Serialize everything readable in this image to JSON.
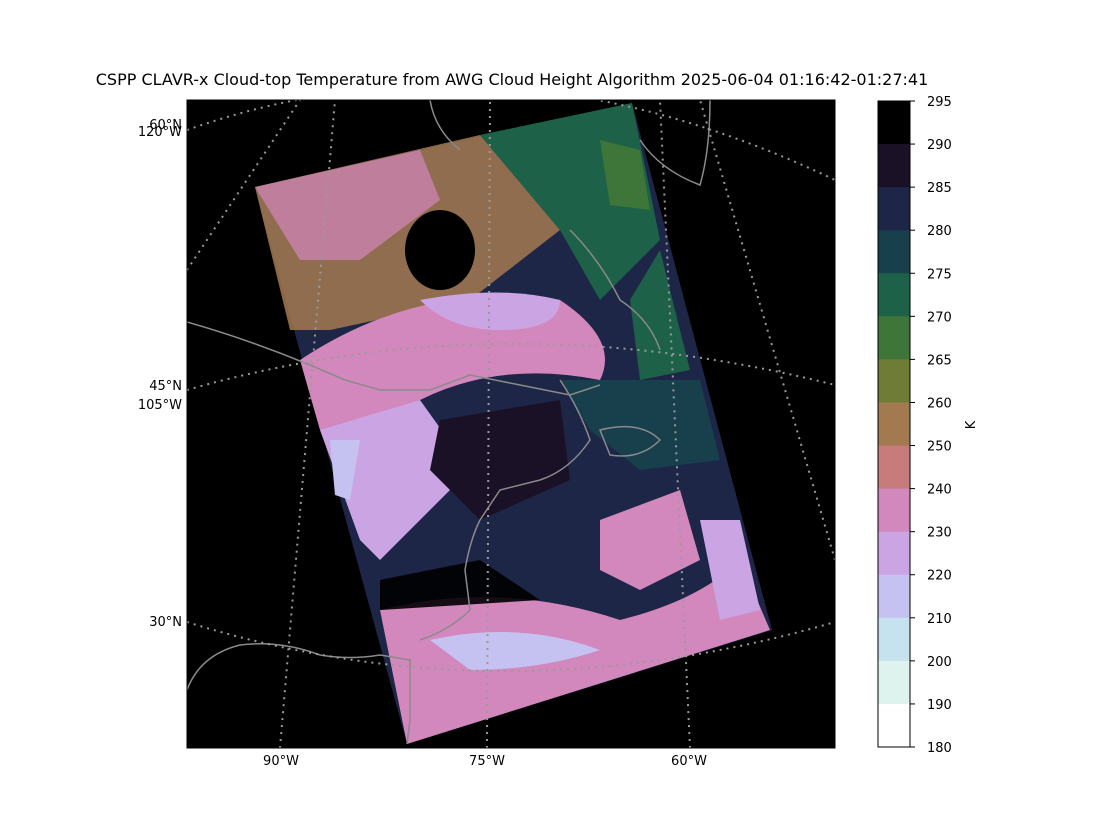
{
  "title": "CSPP CLAVR-x Cloud-top Temperature from AWG Cloud Height Algorithm 2025-06-04 01:16:42-01:27:41",
  "map": {
    "lat_labels": [
      "60°N",
      "45°N",
      "30°N"
    ],
    "lon_labels_left": [
      "120°W",
      "105°W"
    ],
    "lon_labels_bottom": [
      "90°W",
      "75°W",
      "60°W"
    ]
  },
  "colorbar": {
    "unit": "K",
    "ticks": [
      "295",
      "290",
      "285",
      "280",
      "275",
      "270",
      "265",
      "260",
      "250",
      "240",
      "230",
      "220",
      "210",
      "200",
      "190",
      "180"
    ],
    "colors": [
      "#000000",
      "#1b1127",
      "#1d2647",
      "#173f4c",
      "#1d6248",
      "#3d7638",
      "#6f7c36",
      "#a37a50",
      "#c77b7a",
      "#d388bd",
      "#cba4e4",
      "#c5c2f2",
      "#c6e2ee",
      "#dff3ee",
      "#ffffff"
    ]
  },
  "colors": {
    "background": "#000000",
    "grid": "#9a9a9a",
    "coastline": "#8a8a8a"
  }
}
